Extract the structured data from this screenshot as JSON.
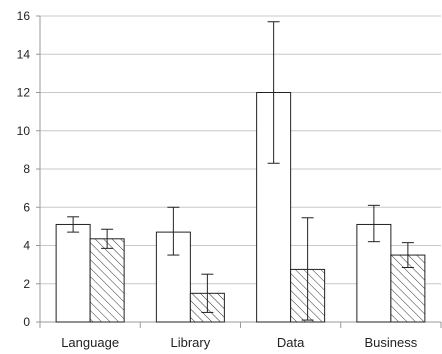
{
  "chart_data": {
    "type": "bar",
    "title": "",
    "xlabel": "",
    "ylabel": "",
    "categories": [
      "Language",
      "Library",
      "Data",
      "Business"
    ],
    "ylim": [
      0,
      16
    ],
    "yticks": [
      0,
      2,
      4,
      6,
      8,
      10,
      12,
      14,
      16
    ],
    "grid": true,
    "legend": "none",
    "series": [
      {
        "fill": "plain",
        "values": [
          5.1,
          4.7,
          12.0,
          5.1
        ],
        "err_low": [
          4.7,
          3.5,
          8.3,
          4.2
        ],
        "err_high": [
          5.5,
          6.0,
          15.7,
          6.1
        ]
      },
      {
        "fill": "hatched",
        "values": [
          4.35,
          1.5,
          2.75,
          3.5
        ],
        "err_low": [
          3.85,
          0.5,
          0.1,
          2.85
        ],
        "err_high": [
          4.85,
          2.5,
          5.45,
          4.15
        ]
      }
    ],
    "colors": {
      "bar_edge": "#222222",
      "grid": "#c8c8c8",
      "axis": "#999999",
      "bar_fill": "#ffffff",
      "hatch": "#333333"
    }
  }
}
